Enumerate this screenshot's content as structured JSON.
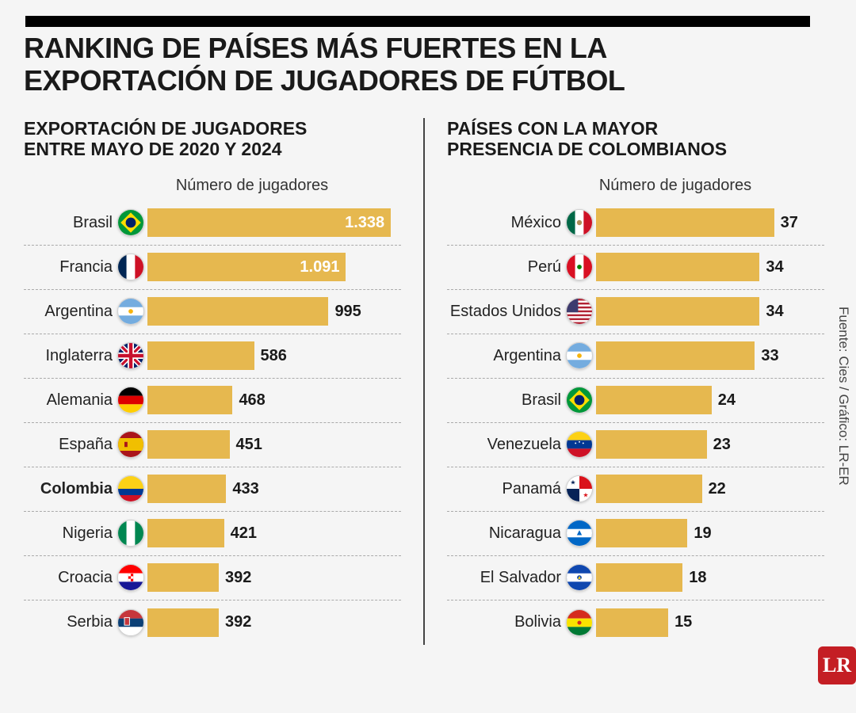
{
  "title_line1": "RANKING DE PAÍSES MÁS FUERTES EN LA",
  "title_line2": "EXPORTACIÓN DE JUGADORES DE FÚTBOL",
  "left": {
    "subtitle_l1": "EXPORTACIÓN DE JUGADORES",
    "subtitle_l2": "ENTRE MAYO DE 2020 Y 2024",
    "axis_label": "Número de jugadores",
    "max_value": 1338,
    "bar_color": "#e6b84f",
    "highlight_row": "Colombia",
    "rows": [
      {
        "country": "Brasil",
        "value": 1338,
        "display": "1.338",
        "label_inside": true,
        "flag": "brazil"
      },
      {
        "country": "Francia",
        "value": 1091,
        "display": "1.091",
        "label_inside": true,
        "flag": "france"
      },
      {
        "country": "Argentina",
        "value": 995,
        "display": "995",
        "label_inside": false,
        "flag": "argentina"
      },
      {
        "country": "Inglaterra",
        "value": 586,
        "display": "586",
        "label_inside": false,
        "flag": "uk"
      },
      {
        "country": "Alemania",
        "value": 468,
        "display": "468",
        "label_inside": false,
        "flag": "germany"
      },
      {
        "country": "España",
        "value": 451,
        "display": "451",
        "label_inside": false,
        "flag": "spain"
      },
      {
        "country": "Colombia",
        "value": 433,
        "display": "433",
        "label_inside": false,
        "flag": "colombia"
      },
      {
        "country": "Nigeria",
        "value": 421,
        "display": "421",
        "label_inside": false,
        "flag": "nigeria"
      },
      {
        "country": "Croacia",
        "value": 392,
        "display": "392",
        "label_inside": false,
        "flag": "croatia"
      },
      {
        "country": "Serbia",
        "value": 392,
        "display": "392",
        "label_inside": false,
        "flag": "serbia"
      }
    ]
  },
  "right": {
    "subtitle_l1": "PAÍSES CON LA MAYOR",
    "subtitle_l2": "PRESENCIA DE COLOMBIANOS",
    "axis_label": "Número de jugadores",
    "max_value": 37,
    "bar_color": "#e6b84f",
    "rows": [
      {
        "country": "México",
        "value": 37,
        "display": "37",
        "flag": "mexico"
      },
      {
        "country": "Perú",
        "value": 34,
        "display": "34",
        "flag": "peru"
      },
      {
        "country": "Estados Unidos",
        "value": 34,
        "display": "34",
        "flag": "usa"
      },
      {
        "country": "Argentina",
        "value": 33,
        "display": "33",
        "flag": "argentina"
      },
      {
        "country": "Brasil",
        "value": 24,
        "display": "24",
        "flag": "brazil"
      },
      {
        "country": "Venezuela",
        "value": 23,
        "display": "23",
        "flag": "venezuela"
      },
      {
        "country": "Panamá",
        "value": 22,
        "display": "22",
        "flag": "panama"
      },
      {
        "country": "Nicaragua",
        "value": 19,
        "display": "19",
        "flag": "nicaragua"
      },
      {
        "country": "El Salvador",
        "value": 18,
        "display": "18",
        "flag": "elsalvador"
      },
      {
        "country": "Bolivia",
        "value": 15,
        "display": "15",
        "flag": "bolivia"
      }
    ]
  },
  "source_text": "Fuente: Cies / Gráfico: LR-ER",
  "logo_text": "LR",
  "background_color": "#f5f5f5",
  "text_color": "#1a1a1a",
  "value_font_size": 20,
  "label_font_size": 20,
  "title_font_size": 36,
  "subtitle_font_size": 23
}
